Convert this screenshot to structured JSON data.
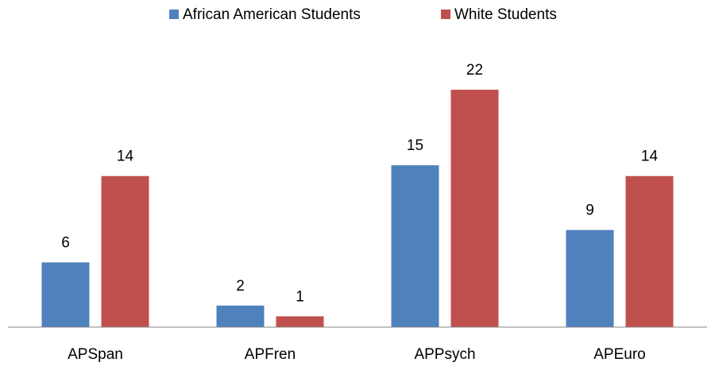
{
  "chart_data": {
    "type": "bar",
    "categories": [
      "APSpan",
      "APFren",
      "APPsych",
      "APEuro"
    ],
    "series": [
      {
        "name": "African American Students",
        "color": "#4f81bd",
        "values": [
          6,
          2,
          15,
          9
        ]
      },
      {
        "name": "White Students",
        "color": "#c0504d",
        "values": [
          14,
          1,
          22,
          14
        ]
      }
    ],
    "legend": "top"
  }
}
